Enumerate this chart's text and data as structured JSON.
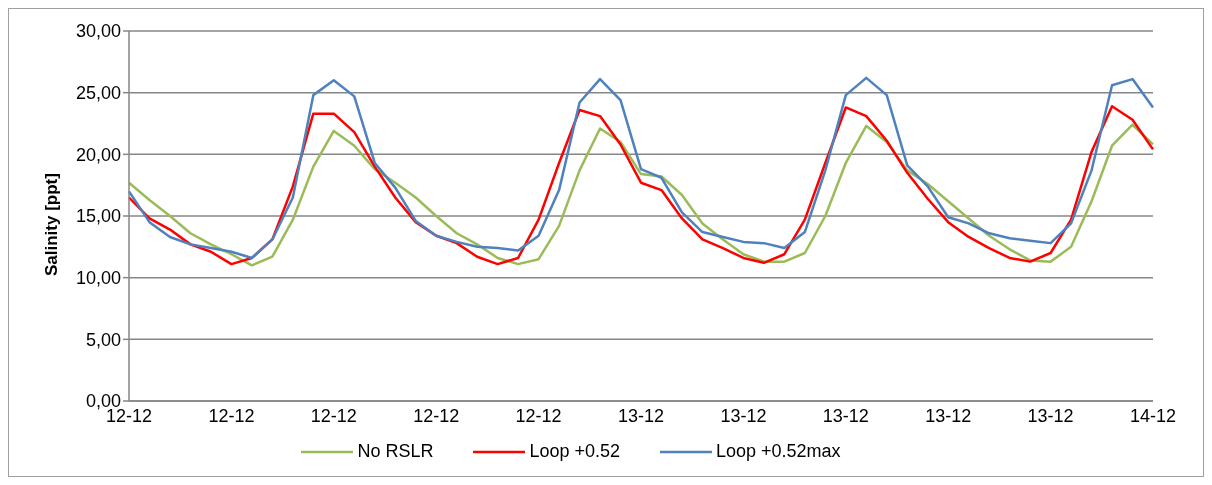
{
  "chart_data": {
    "type": "line",
    "ylabel": "Salinity [ppt]",
    "categories": [
      "12-12",
      null,
      null,
      null,
      null,
      "12-12",
      null,
      null,
      null,
      null,
      "12-12",
      null,
      null,
      null,
      null,
      "12-12",
      null,
      null,
      null,
      null,
      "12-12",
      null,
      null,
      null,
      null,
      "13-12",
      null,
      null,
      null,
      null,
      "13-12",
      null,
      null,
      null,
      null,
      "13-12",
      null,
      null,
      null,
      null,
      "13-12",
      null,
      null,
      null,
      null,
      "13-12",
      null,
      null,
      null,
      null,
      "14-12"
    ],
    "ylim": [
      0,
      30
    ],
    "yticks": [
      {
        "value": 0,
        "label": "0,00"
      },
      {
        "value": 5,
        "label": "5,00"
      },
      {
        "value": 10,
        "label": "10,00"
      },
      {
        "value": 15,
        "label": "15,00"
      },
      {
        "value": 20,
        "label": "20,00"
      },
      {
        "value": 25,
        "label": "25,00"
      },
      {
        "value": 30,
        "label": "30,00"
      }
    ],
    "grid": "y",
    "legend": "bottom",
    "marker": "none",
    "line_style": "solid",
    "series": [
      {
        "name": "No RSLR",
        "color": "#9bbb59",
        "values": [
          17.7,
          16.3,
          15.0,
          13.6,
          12.7,
          11.9,
          11.0,
          11.7,
          14.7,
          19.0,
          21.9,
          20.7,
          18.8,
          17.7,
          16.5,
          15.0,
          13.6,
          12.7,
          11.6,
          11.1,
          11.5,
          14.2,
          18.7,
          22.1,
          21.0,
          18.4,
          18.2,
          16.7,
          14.4,
          13.1,
          11.9,
          11.3,
          11.3,
          12.0,
          15.0,
          19.3,
          22.3,
          21.0,
          18.7,
          17.6,
          16.2,
          14.8,
          13.4,
          12.3,
          11.4,
          11.3,
          12.5,
          16.2,
          20.7,
          22.4,
          20.8
        ]
      },
      {
        "name": "Loop +0.52",
        "color": "#ff0000",
        "values": [
          16.5,
          14.8,
          13.9,
          12.7,
          12.1,
          11.1,
          11.6,
          13.1,
          17.4,
          23.3,
          23.3,
          21.8,
          19.0,
          16.5,
          14.5,
          13.4,
          12.8,
          11.7,
          11.1,
          11.6,
          14.7,
          19.3,
          23.6,
          23.1,
          20.8,
          17.7,
          17.1,
          14.8,
          13.1,
          12.4,
          11.6,
          11.2,
          11.9,
          14.7,
          19.3,
          23.8,
          23.1,
          21.1,
          18.5,
          16.4,
          14.5,
          13.3,
          12.4,
          11.6,
          11.3,
          12.0,
          14.7,
          20.2,
          23.9,
          22.8,
          20.4
        ]
      },
      {
        "name": "Loop +0.52max",
        "color": "#4f81bd",
        "values": [
          17.0,
          14.5,
          13.3,
          12.7,
          12.4,
          12.1,
          11.6,
          13.1,
          16.5,
          24.8,
          26.0,
          24.7,
          19.3,
          17.3,
          14.6,
          13.4,
          12.9,
          12.5,
          12.4,
          12.2,
          13.4,
          17.1,
          24.2,
          26.1,
          24.4,
          18.8,
          18.1,
          15.3,
          13.7,
          13.3,
          12.9,
          12.8,
          12.4,
          13.7,
          18.7,
          24.8,
          26.2,
          24.8,
          19.1,
          17.4,
          14.9,
          14.4,
          13.6,
          13.2,
          13.0,
          12.8,
          14.4,
          18.7,
          25.6,
          26.1,
          23.8
        ]
      }
    ]
  }
}
